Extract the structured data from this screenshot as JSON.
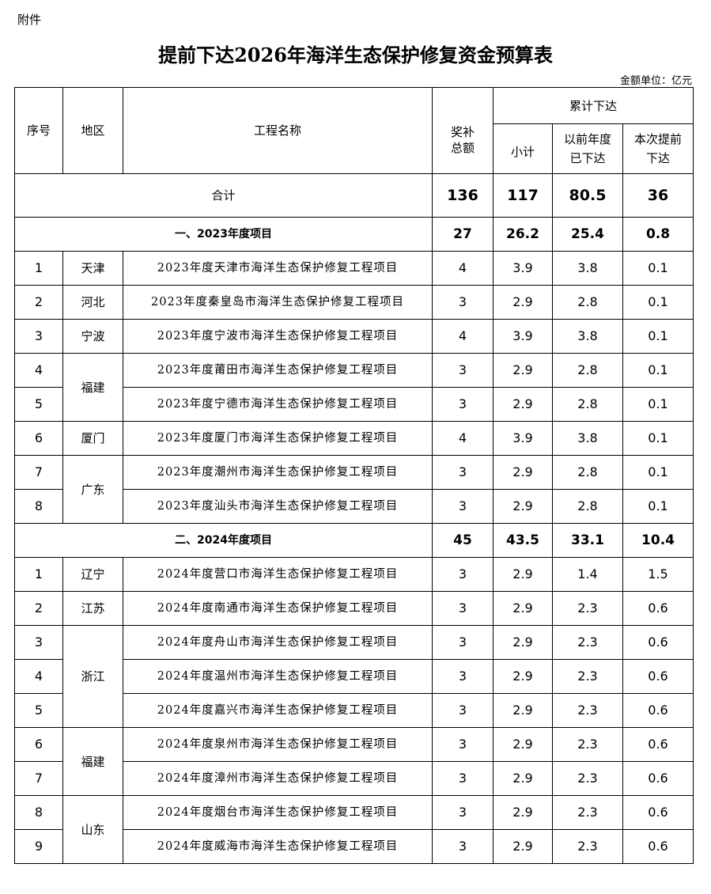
{
  "attachment_label": "附件",
  "title": "提前下达2026年海洋生态保护修复资金预算表",
  "unit": "金额单位：亿元",
  "headers": {
    "seq": "序号",
    "region": "地区",
    "project": "工程名称",
    "total": "奖补\n总额",
    "cumulative": "累计下达",
    "subtotal": "小计",
    "previous": "以前年度\n已下达",
    "current": "本次提前\n下达"
  },
  "grand_total": {
    "label": "合计",
    "total": "136",
    "subtotal": "117",
    "previous": "80.5",
    "current": "36"
  },
  "sections": [
    {
      "label": "一、2023年度项目",
      "total": "27",
      "subtotal": "26.2",
      "previous": "25.4",
      "current": "0.8",
      "rows": [
        {
          "seq": "1",
          "region": "天津",
          "project": "2023年度天津市海洋生态保护修复工程项目",
          "total": "4",
          "subtotal": "3.9",
          "previous": "3.8",
          "current": "0.1"
        },
        {
          "seq": "2",
          "region": "河北",
          "project": "2023年度秦皇岛市海洋生态保护修复工程项目",
          "total": "3",
          "subtotal": "2.9",
          "previous": "2.8",
          "current": "0.1"
        },
        {
          "seq": "3",
          "region": "宁波",
          "project": "2023年度宁波市海洋生态保护修复工程项目",
          "total": "4",
          "subtotal": "3.9",
          "previous": "3.8",
          "current": "0.1"
        },
        {
          "seq": "4",
          "region": "福建",
          "project": "2023年度莆田市海洋生态保护修复工程项目",
          "total": "3",
          "subtotal": "2.9",
          "previous": "2.8",
          "current": "0.1"
        },
        {
          "seq": "5",
          "region": "福建",
          "project": "2023年度宁德市海洋生态保护修复工程项目",
          "total": "3",
          "subtotal": "2.9",
          "previous": "2.8",
          "current": "0.1"
        },
        {
          "seq": "6",
          "region": "厦门",
          "project": "2023年度厦门市海洋生态保护修复工程项目",
          "total": "4",
          "subtotal": "3.9",
          "previous": "3.8",
          "current": "0.1"
        },
        {
          "seq": "7",
          "region": "广东",
          "project": "2023年度潮州市海洋生态保护修复工程项目",
          "total": "3",
          "subtotal": "2.9",
          "previous": "2.8",
          "current": "0.1"
        },
        {
          "seq": "8",
          "region": "广东",
          "project": "2023年度汕头市海洋生态保护修复工程项目",
          "total": "3",
          "subtotal": "2.9",
          "previous": "2.8",
          "current": "0.1"
        }
      ]
    },
    {
      "label": "二、2024年度项目",
      "total": "45",
      "subtotal": "43.5",
      "previous": "33.1",
      "current": "10.4",
      "rows": [
        {
          "seq": "1",
          "region": "辽宁",
          "project": "2024年度营口市海洋生态保护修复工程项目",
          "total": "3",
          "subtotal": "2.9",
          "previous": "1.4",
          "current": "1.5"
        },
        {
          "seq": "2",
          "region": "江苏",
          "project": "2024年度南通市海洋生态保护修复工程项目",
          "total": "3",
          "subtotal": "2.9",
          "previous": "2.3",
          "current": "0.6"
        },
        {
          "seq": "3",
          "region": "浙江",
          "project": "2024年度舟山市海洋生态保护修复工程项目",
          "total": "3",
          "subtotal": "2.9",
          "previous": "2.3",
          "current": "0.6"
        },
        {
          "seq": "4",
          "region": "浙江",
          "project": "2024年度温州市海洋生态保护修复工程项目",
          "total": "3",
          "subtotal": "2.9",
          "previous": "2.3",
          "current": "0.6"
        },
        {
          "seq": "5",
          "region": "浙江",
          "project": "2024年度嘉兴市海洋生态保护修复工程项目",
          "total": "3",
          "subtotal": "2.9",
          "previous": "2.3",
          "current": "0.6"
        },
        {
          "seq": "6",
          "region": "福建",
          "project": "2024年度泉州市海洋生态保护修复工程项目",
          "total": "3",
          "subtotal": "2.9",
          "previous": "2.3",
          "current": "0.6"
        },
        {
          "seq": "7",
          "region": "福建",
          "project": "2024年度漳州市海洋生态保护修复工程项目",
          "total": "3",
          "subtotal": "2.9",
          "previous": "2.3",
          "current": "0.6"
        },
        {
          "seq": "8",
          "region": "山东",
          "project": "2024年度烟台市海洋生态保护修复工程项目",
          "total": "3",
          "subtotal": "2.9",
          "previous": "2.3",
          "current": "0.6"
        },
        {
          "seq": "9",
          "region": "山东",
          "project": "2024年度威海市海洋生态保护修复工程项目",
          "total": "3",
          "subtotal": "2.9",
          "previous": "2.3",
          "current": "0.6"
        }
      ]
    }
  ]
}
